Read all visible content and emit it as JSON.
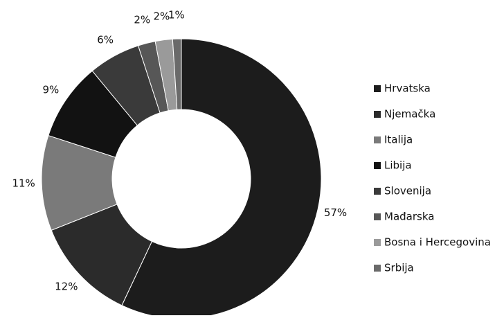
{
  "chart_data": {
    "type": "donut",
    "categories": [
      "Hrvatska",
      "Njemačka",
      "Italija",
      "Libija",
      "Slovenija",
      "Mađarska",
      "Bosna i Hercegovina",
      "Srbija"
    ],
    "values": [
      57,
      12,
      11,
      9,
      6,
      2,
      2,
      1
    ],
    "value_labels": [
      "57%",
      "12%",
      "11%",
      "9%",
      "6%",
      "2%",
      "2%",
      "1%"
    ],
    "colors": [
      "#1c1c1c",
      "#2b2b2b",
      "#7a7a7a",
      "#121212",
      "#3a3a3a",
      "#575757",
      "#9a9a9a",
      "#6a6a6a"
    ],
    "legend": "right"
  }
}
